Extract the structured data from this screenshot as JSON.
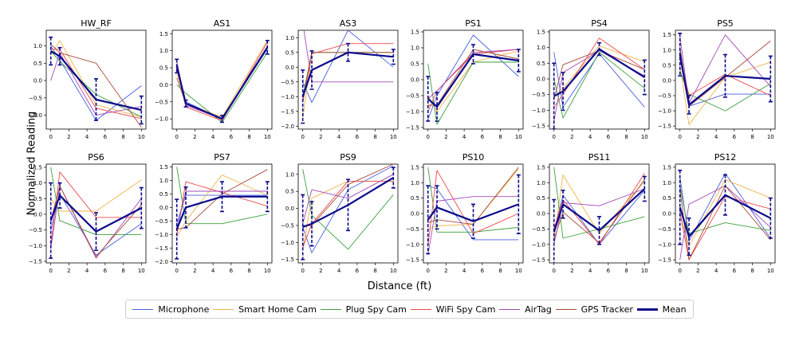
{
  "figure": {
    "ylabel": "Normalized Reading",
    "xlabel": "Distance (ft)"
  },
  "legend": [
    {
      "name": "Microphone",
      "color": "#4a5fe0"
    },
    {
      "name": "Smart Home Cam",
      "color": "#f0b44a"
    },
    {
      "name": "Plug Spy Cam",
      "color": "#3ba03b"
    },
    {
      "name": "WiFi Spy Cam",
      "color": "#f04848"
    },
    {
      "name": "AirTag",
      "color": "#a64ab8"
    },
    {
      "name": "GPS Tracker",
      "color": "#a84c3c"
    },
    {
      "name": "Mean",
      "color": "#0a0a8c"
    }
  ],
  "chart_data": [
    {
      "type": "line",
      "title": "HW_RF",
      "x": [
        0,
        1,
        5,
        10
      ],
      "xticks": [
        0,
        2,
        4,
        6,
        8,
        10
      ],
      "yticks": [
        -1.0,
        -0.5,
        0.0,
        0.5,
        1.0
      ],
      "ylim": [
        -1.4,
        1.45
      ],
      "series": [
        {
          "name": "Microphone",
          "values": [
            1.0,
            0.6,
            -1.15,
            -0.15
          ]
        },
        {
          "name": "Smart Home Cam",
          "values": [
            0.75,
            1.15,
            -0.7,
            -1.05
          ]
        },
        {
          "name": "Plug Spy Cam",
          "values": [
            0.85,
            0.55,
            -0.4,
            -1.05
          ]
        },
        {
          "name": "WiFi Spy Cam",
          "values": [
            0.9,
            0.9,
            -0.8,
            -1.1
          ]
        },
        {
          "name": "AirTag",
          "values": [
            0.0,
            0.8,
            -1.0,
            -0.75
          ]
        },
        {
          "name": "GPS Tracker",
          "values": [
            1.05,
            0.8,
            0.5,
            -1.35
          ]
        },
        {
          "name": "Mean",
          "values": [
            0.85,
            0.7,
            -0.55,
            -0.85
          ],
          "err": [
            0.4,
            0.25,
            0.6,
            0.4
          ]
        }
      ]
    },
    {
      "type": "line",
      "title": "AS1",
      "x": [
        0,
        1,
        5,
        10
      ],
      "xticks": [
        0,
        2,
        4,
        6,
        8,
        10
      ],
      "yticks": [
        -1.0,
        -0.5,
        0.0,
        0.5,
        1.0,
        1.5
      ],
      "ylim": [
        -1.3,
        1.6
      ],
      "series": [
        {
          "name": "Microphone",
          "values": [
            0.6,
            -0.5,
            -1.0,
            1.05
          ]
        },
        {
          "name": "Smart Home Cam",
          "values": [
            0.35,
            -0.55,
            -0.95,
            1.3
          ]
        },
        {
          "name": "Plug Spy Cam",
          "values": [
            0.0,
            -0.25,
            -1.1,
            0.95
          ]
        },
        {
          "name": "WiFi Spy Cam",
          "values": [
            0.5,
            -0.65,
            -1.05,
            1.25
          ]
        },
        {
          "name": "AirTag",
          "values": [
            0.7,
            -0.6,
            -1.0,
            1.1
          ]
        },
        {
          "name": "GPS Tracker",
          "values": [
            0.2,
            -0.55,
            -1.0,
            1.1
          ]
        },
        {
          "name": "Mean",
          "values": [
            0.55,
            -0.55,
            -1.0,
            1.1
          ],
          "err": [
            0.2,
            0.1,
            0.1,
            0.2
          ]
        }
      ]
    },
    {
      "type": "line",
      "title": "AS3",
      "x": [
        0,
        1,
        5,
        10
      ],
      "xticks": [
        0,
        2,
        4,
        6,
        8,
        10
      ],
      "yticks": [
        -2.0,
        -1.5,
        -1.0,
        -0.5,
        0.0,
        0.5,
        1.0
      ],
      "ylim": [
        -2.1,
        1.25
      ],
      "series": [
        {
          "name": "Microphone",
          "values": [
            -0.5,
            -1.2,
            1.25,
            0.0
          ]
        },
        {
          "name": "Smart Home Cam",
          "values": [
            -1.75,
            0.5,
            0.5,
            0.5
          ]
        },
        {
          "name": "Plug Spy Cam",
          "values": [
            -1.0,
            0.5,
            0.5,
            0.5
          ]
        },
        {
          "name": "WiFi Spy Cam",
          "values": [
            -1.2,
            0.45,
            0.8,
            0.8
          ]
        },
        {
          "name": "AirTag",
          "values": [
            1.5,
            -0.5,
            -0.5,
            -0.5
          ]
        },
        {
          "name": "GPS Tracker",
          "values": [
            -1.1,
            0.5,
            0.5,
            0.5
          ]
        },
        {
          "name": "Mean",
          "values": [
            -1.0,
            -0.1,
            0.5,
            0.35
          ],
          "err": [
            0.9,
            0.65,
            0.3,
            0.25
          ]
        }
      ]
    },
    {
      "type": "line",
      "title": "PS1",
      "x": [
        0,
        1,
        5,
        10
      ],
      "xticks": [
        0,
        2,
        4,
        6,
        8,
        10
      ],
      "yticks": [
        -1.5,
        -1.0,
        -0.5,
        0.0,
        0.5,
        1.0,
        1.5
      ],
      "ylim": [
        -1.55,
        1.55
      ],
      "series": [
        {
          "name": "Microphone",
          "values": [
            -1.25,
            -0.5,
            1.4,
            0.1
          ]
        },
        {
          "name": "Smart Home Cam",
          "values": [
            -0.5,
            -1.0,
            0.55,
            0.9
          ]
        },
        {
          "name": "Plug Spy Cam",
          "values": [
            0.5,
            -1.4,
            0.55,
            0.55
          ]
        },
        {
          "name": "WiFi Spy Cam",
          "values": [
            -1.0,
            -0.35,
            0.8,
            0.95
          ]
        },
        {
          "name": "AirTag",
          "values": [
            -0.6,
            -0.35,
            0.85,
            0.95
          ]
        },
        {
          "name": "GPS Tracker",
          "values": [
            -0.8,
            -0.8,
            0.95,
            0.65
          ]
        },
        {
          "name": "Mean",
          "values": [
            -0.6,
            -0.85,
            0.8,
            0.6
          ],
          "err": [
            0.7,
            0.45,
            0.3,
            0.35
          ]
        }
      ]
    },
    {
      "type": "line",
      "title": "PS4",
      "x": [
        0,
        1,
        5,
        10
      ],
      "xticks": [
        0,
        2,
        4,
        6,
        8,
        10
      ],
      "yticks": [
        -1.5,
        -1.0,
        -0.5,
        0.0,
        0.5,
        1.0,
        1.5
      ],
      "ylim": [
        -1.6,
        1.55
      ],
      "series": [
        {
          "name": "Microphone",
          "values": [
            0.85,
            -0.9,
            0.8,
            -0.9
          ]
        },
        {
          "name": "Smart Home Cam",
          "values": [
            -0.6,
            -0.3,
            1.05,
            0.55
          ]
        },
        {
          "name": "Plug Spy Cam",
          "values": [
            0.0,
            -1.25,
            0.85,
            -0.3
          ]
        },
        {
          "name": "WiFi Spy Cam",
          "values": [
            -0.9,
            -0.5,
            1.3,
            0.3
          ]
        },
        {
          "name": "AirTag",
          "values": [
            -1.35,
            0.2,
            0.9,
            0.1
          ]
        },
        {
          "name": "GPS Tracker",
          "values": [
            -0.65,
            0.45,
            0.9,
            0.3
          ]
        },
        {
          "name": "Mean",
          "values": [
            -0.55,
            -0.4,
            0.95,
            0.05
          ],
          "err": [
            1.05,
            0.6,
            0.2,
            0.55
          ]
        }
      ]
    },
    {
      "type": "line",
      "title": "PS5",
      "x": [
        0,
        1,
        5,
        10
      ],
      "xticks": [
        0,
        2,
        4,
        6,
        8,
        10
      ],
      "yticks": [
        -1.5,
        -1.0,
        -0.5,
        0.0,
        0.5,
        1.0,
        1.5
      ],
      "ylim": [
        -1.6,
        1.65
      ],
      "series": [
        {
          "name": "Microphone",
          "values": [
            1.0,
            -0.85,
            -0.45,
            -0.45
          ]
        },
        {
          "name": "Smart Home Cam",
          "values": [
            0.5,
            -1.45,
            0.1,
            0.6
          ]
        },
        {
          "name": "Plug Spy Cam",
          "values": [
            0.3,
            -0.45,
            -1.0,
            -0.1
          ]
        },
        {
          "name": "WiFi Spy Cam",
          "values": [
            0.85,
            -0.5,
            0.2,
            -0.5
          ]
        },
        {
          "name": "AirTag",
          "values": [
            1.45,
            -0.75,
            1.5,
            -0.2
          ]
        },
        {
          "name": "GPS Tracker",
          "values": [
            1.1,
            -0.85,
            0.1,
            1.3
          ]
        },
        {
          "name": "Mean",
          "values": [
            0.85,
            -0.8,
            0.15,
            0.05
          ],
          "err": [
            0.7,
            0.3,
            0.7,
            0.75
          ]
        }
      ]
    },
    {
      "type": "line",
      "title": "PS6",
      "x": [
        0,
        1,
        5,
        10
      ],
      "xticks": [
        0,
        2,
        4,
        6,
        8,
        10
      ],
      "yticks": [
        -1.5,
        -1.0,
        -0.5,
        0.0,
        0.5,
        1.0,
        1.5
      ],
      "ylim": [
        -1.55,
        1.6
      ],
      "series": [
        {
          "name": "Microphone",
          "values": [
            -0.5,
            0.65,
            -1.3,
            -0.3
          ]
        },
        {
          "name": "Smart Home Cam",
          "values": [
            0.5,
            0.1,
            0.1,
            1.1
          ]
        },
        {
          "name": "Plug Spy Cam",
          "values": [
            1.5,
            -0.2,
            -0.65,
            -0.65
          ]
        },
        {
          "name": "WiFi Spy Cam",
          "values": [
            -1.0,
            1.35,
            -0.1,
            -0.1
          ]
        },
        {
          "name": "AirTag",
          "values": [
            -1.1,
            0.9,
            -1.4,
            0.5
          ]
        },
        {
          "name": "GPS Tracker",
          "values": [
            -0.2,
            0.9,
            -1.35,
            0.3
          ]
        },
        {
          "name": "Mean",
          "values": [
            -0.2,
            0.6,
            -0.55,
            0.2
          ],
          "err": [
            1.2,
            0.4,
            0.6,
            0.65
          ]
        }
      ]
    },
    {
      "type": "line",
      "title": "PS7",
      "x": [
        0,
        1,
        5,
        10
      ],
      "xticks": [
        0,
        2,
        4,
        6,
        8,
        10
      ],
      "yticks": [
        -2.0,
        -1.5,
        -1.0,
        -0.5,
        0.0,
        0.5,
        1.0,
        1.5
      ],
      "ylim": [
        -2.05,
        1.6
      ],
      "series": [
        {
          "name": "Microphone",
          "values": [
            -0.6,
            0.45,
            0.45,
            0.45
          ]
        },
        {
          "name": "Smart Home Cam",
          "values": [
            -1.1,
            -0.5,
            1.2,
            0.45
          ]
        },
        {
          "name": "Plug Spy Cam",
          "values": [
            1.5,
            -0.6,
            -0.6,
            -0.25
          ]
        },
        {
          "name": "WiFi Spy Cam",
          "values": [
            -1.05,
            0.95,
            0.55,
            0.05
          ]
        },
        {
          "name": "AirTag",
          "values": [
            -0.85,
            0.6,
            0.6,
            0.6
          ]
        },
        {
          "name": "GPS Tracker",
          "values": [
            -0.8,
            -0.75,
            0.5,
            1.4
          ]
        },
        {
          "name": "Mean",
          "values": [
            -0.8,
            0.0,
            0.4,
            0.4
          ],
          "err": [
            1.1,
            0.75,
            0.55,
            0.55
          ]
        }
      ]
    },
    {
      "type": "line",
      "title": "PS9",
      "x": [
        0,
        1,
        5,
        10
      ],
      "xticks": [
        0,
        2,
        4,
        6,
        8,
        10
      ],
      "yticks": [
        -1.5,
        -1.0,
        -0.5,
        0.0,
        0.5,
        1.0
      ],
      "ylim": [
        -1.6,
        1.3
      ],
      "series": [
        {
          "name": "Microphone",
          "values": [
            -0.55,
            -1.3,
            0.55,
            1.25
          ]
        },
        {
          "name": "Smart Home Cam",
          "values": [
            -1.2,
            0.3,
            0.8,
            0.8
          ]
        },
        {
          "name": "Plug Spy Cam",
          "values": [
            1.15,
            -0.2,
            -1.2,
            0.4
          ]
        },
        {
          "name": "WiFi Spy Cam",
          "values": [
            -1.15,
            -0.45,
            0.8,
            0.8
          ]
        },
        {
          "name": "AirTag",
          "values": [
            -0.45,
            0.55,
            0.3,
            1.0
          ]
        },
        {
          "name": "GPS Tracker",
          "values": [
            -0.5,
            -0.5,
            0.7,
            1.3
          ]
        },
        {
          "name": "Mean",
          "values": [
            -0.55,
            -0.45,
            0.1,
            0.9
          ],
          "err": [
            0.95,
            0.65,
            0.75,
            0.3
          ]
        }
      ]
    },
    {
      "type": "line",
      "title": "PS10",
      "x": [
        0,
        1,
        5,
        10
      ],
      "xticks": [
        0,
        2,
        4,
        6,
        8,
        10
      ],
      "yticks": [
        -1.5,
        -1.0,
        -0.5,
        0.0,
        0.5,
        1.0,
        1.5
      ],
      "ylim": [
        -1.6,
        1.6
      ],
      "series": [
        {
          "name": "Microphone",
          "values": [
            0.9,
            0.8,
            -0.85,
            -0.85
          ]
        },
        {
          "name": "Smart Home Cam",
          "values": [
            -0.5,
            -0.4,
            -0.35,
            1.45
          ]
        },
        {
          "name": "Plug Spy Cam",
          "values": [
            1.5,
            -0.6,
            -0.6,
            -0.45
          ]
        },
        {
          "name": "WiFi Spy Cam",
          "values": [
            -1.05,
            1.4,
            -0.65,
            0.0
          ]
        },
        {
          "name": "AirTag",
          "values": [
            -1.35,
            0.4,
            0.55,
            0.55
          ]
        },
        {
          "name": "GPS Tracker",
          "values": [
            -0.3,
            -0.2,
            -0.35,
            1.5
          ]
        },
        {
          "name": "Mean",
          "values": [
            -0.2,
            0.2,
            -0.25,
            0.3
          ],
          "err": [
            1.1,
            0.7,
            0.55,
            0.95
          ]
        }
      ]
    },
    {
      "type": "line",
      "title": "PS11",
      "x": [
        0,
        1,
        5,
        10
      ],
      "xticks": [
        0,
        2,
        4,
        6,
        8,
        10
      ],
      "yticks": [
        -1.5,
        -1.0,
        -0.5,
        0.0,
        0.5,
        1.0,
        1.5
      ],
      "ylim": [
        -1.6,
        1.6
      ],
      "series": [
        {
          "name": "Microphone",
          "values": [
            -0.6,
            0.6,
            -1.0,
            0.75
          ]
        },
        {
          "name": "Smart Home Cam",
          "values": [
            -0.85,
            1.25,
            -0.65,
            1.05
          ]
        },
        {
          "name": "Plug Spy Cam",
          "values": [
            1.5,
            -0.8,
            -0.5,
            -0.1
          ]
        },
        {
          "name": "WiFi Spy Cam",
          "values": [
            -0.5,
            0.45,
            -1.0,
            1.3
          ]
        },
        {
          "name": "AirTag",
          "values": [
            -1.0,
            0.35,
            0.25,
            0.8
          ]
        },
        {
          "name": "GPS Tracker",
          "values": [
            -0.85,
            0.05,
            -0.95,
            1.1
          ]
        },
        {
          "name": "Mean",
          "values": [
            -0.6,
            0.3,
            -0.55,
            0.8
          ],
          "err": [
            1.05,
            0.45,
            0.45,
            0.4
          ]
        }
      ]
    },
    {
      "type": "line",
      "title": "PS12",
      "x": [
        0,
        1,
        5,
        10
      ],
      "xticks": [
        0,
        2,
        4,
        6,
        8,
        10
      ],
      "yticks": [
        -1.5,
        -1.0,
        -0.5,
        0.0,
        0.5,
        1.0,
        1.5
      ],
      "ylim": [
        -1.6,
        1.6
      ],
      "series": [
        {
          "name": "Microphone",
          "values": [
            1.2,
            -0.9,
            1.3,
            -0.8
          ]
        },
        {
          "name": "Smart Home Cam",
          "values": [
            0.0,
            -1.05,
            1.1,
            0.5
          ]
        },
        {
          "name": "Plug Spy Cam",
          "values": [
            0.9,
            -0.65,
            -0.3,
            -0.55
          ]
        },
        {
          "name": "WiFi Spy Cam",
          "values": [
            0.05,
            -1.5,
            0.55,
            0.15
          ]
        },
        {
          "name": "AirTag",
          "values": [
            -1.5,
            0.3,
            0.9,
            -0.45
          ]
        },
        {
          "name": "GPS Tracker",
          "values": [
            0.8,
            -1.5,
            0.9,
            -0.85
          ]
        },
        {
          "name": "Mean",
          "values": [
            0.2,
            -0.75,
            0.6,
            -0.15
          ],
          "err": [
            1.2,
            0.6,
            0.65,
            0.65
          ]
        }
      ]
    }
  ]
}
